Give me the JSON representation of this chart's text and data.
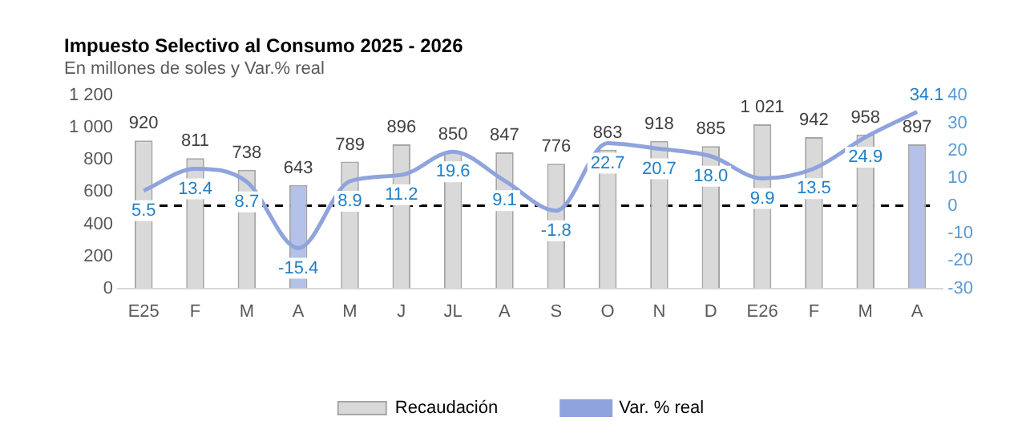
{
  "chart_data": {
    "type": "bar",
    "title": "Impuesto Selectivo al Consumo 2025 - 2026",
    "subtitle": "En millones de soles y Var.% real",
    "categories": [
      "E25",
      "F",
      "M",
      "A",
      "M",
      "J",
      "JL",
      "A",
      "S",
      "O",
      "N",
      "D",
      "E26",
      "F",
      "M",
      "A"
    ],
    "series": [
      {
        "name": "Recaudación",
        "color": "#d9d9d9",
        "colors": [
          "#d9d9d9",
          "#d9d9d9",
          "#d9d9d9",
          "#b4c1e8",
          "#d9d9d9",
          "#d9d9d9",
          "#d9d9d9",
          "#d9d9d9",
          "#d9d9d9",
          "#d9d9d9",
          "#d9d9d9",
          "#d9d9d9",
          "#d9d9d9",
          "#d9d9d9",
          "#d9d9d9",
          "#b4c1e8"
        ],
        "values": [
          920,
          811,
          738,
          643,
          789,
          896,
          850,
          847,
          776,
          863,
          918,
          885,
          1021,
          942,
          958,
          897
        ],
        "value_labels": [
          "920",
          "811",
          "738",
          "643",
          "789",
          "896",
          "850",
          "847",
          "776",
          "863",
          "918",
          "885",
          "1 021",
          "942",
          "958",
          "897"
        ]
      },
      {
        "name": "Var. % real",
        "type": "line",
        "axis": "y2",
        "color": "#8fa3dc",
        "values": [
          5.5,
          13.4,
          8.7,
          -15.4,
          8.9,
          11.2,
          19.6,
          9.1,
          -1.8,
          22.7,
          20.7,
          18.0,
          9.9,
          13.5,
          24.9,
          34.1
        ],
        "value_labels": [
          "5.5",
          "13.4",
          "8.7",
          "-15.4",
          "8.9",
          "11.2",
          "19.6",
          "9.1",
          "-1.8",
          "22.7",
          "20.7",
          "18.0",
          "9.9",
          "13.5",
          "24.9",
          "34.1"
        ]
      }
    ],
    "ylim": [
      0,
      1200
    ],
    "yticks": [
      0,
      200,
      400,
      600,
      800,
      {
        "value": 1000,
        "label": "1 000"
      },
      {
        "value": 1200,
        "label": "1 200"
      }
    ],
    "y2lim": [
      -30,
      40
    ],
    "y2ticks": [
      -30,
      -20,
      -10,
      0,
      10,
      20,
      30,
      40
    ],
    "ref_lines": [
      {
        "axis": "y2",
        "value": 0,
        "color": "#000000",
        "line_style": "dashed"
      }
    ],
    "grid": false,
    "legend": "bottom",
    "marker": "none"
  }
}
